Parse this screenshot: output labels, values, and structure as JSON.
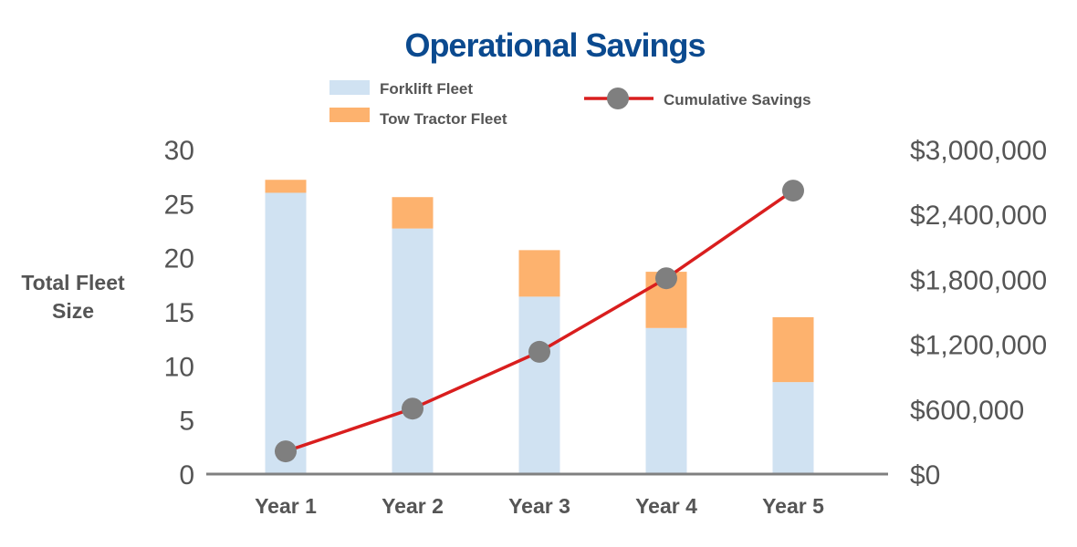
{
  "chart_data": {
    "type": "bar",
    "stacked": true,
    "title": "Operational Savings",
    "categories": [
      "Year 1",
      "Year 2",
      "Year 3",
      "Year 4",
      "Year 5"
    ],
    "series": [
      {
        "name": "Forklift Fleet",
        "type": "bar",
        "axis": "left",
        "values": [
          26,
          22.7,
          16.4,
          13.5,
          8.5
        ]
      },
      {
        "name": "Tow Tractor Fleet",
        "type": "bar",
        "axis": "left",
        "values": [
          1.2,
          2.9,
          4.3,
          5.2,
          6
        ]
      },
      {
        "name": "Cumulative Savings",
        "type": "line",
        "axis": "right",
        "values": [
          210000,
          605000,
          1130000,
          1810000,
          2620000
        ]
      }
    ],
    "ylabel": [
      "Total Fleet",
      "Size"
    ],
    "ylim": [
      0,
      30
    ],
    "yticks": [
      "0",
      "5",
      "10",
      "15",
      "20",
      "25",
      "30"
    ],
    "y2lim": [
      0,
      3000000
    ],
    "y2ticks": [
      "$0",
      "$600,000",
      "$1,200,000",
      "$1,800,000",
      "$2,400,000",
      "$3,000,000"
    ],
    "legend": "top",
    "grid": false,
    "colors": {
      "title": "#0B4A8F",
      "forklift": "#D0E2F2",
      "tow_tractor": "#FDB26E",
      "line": "#D91E1E",
      "marker": "#7F7F7F",
      "axis": "#808080",
      "text": "#555555"
    }
  }
}
